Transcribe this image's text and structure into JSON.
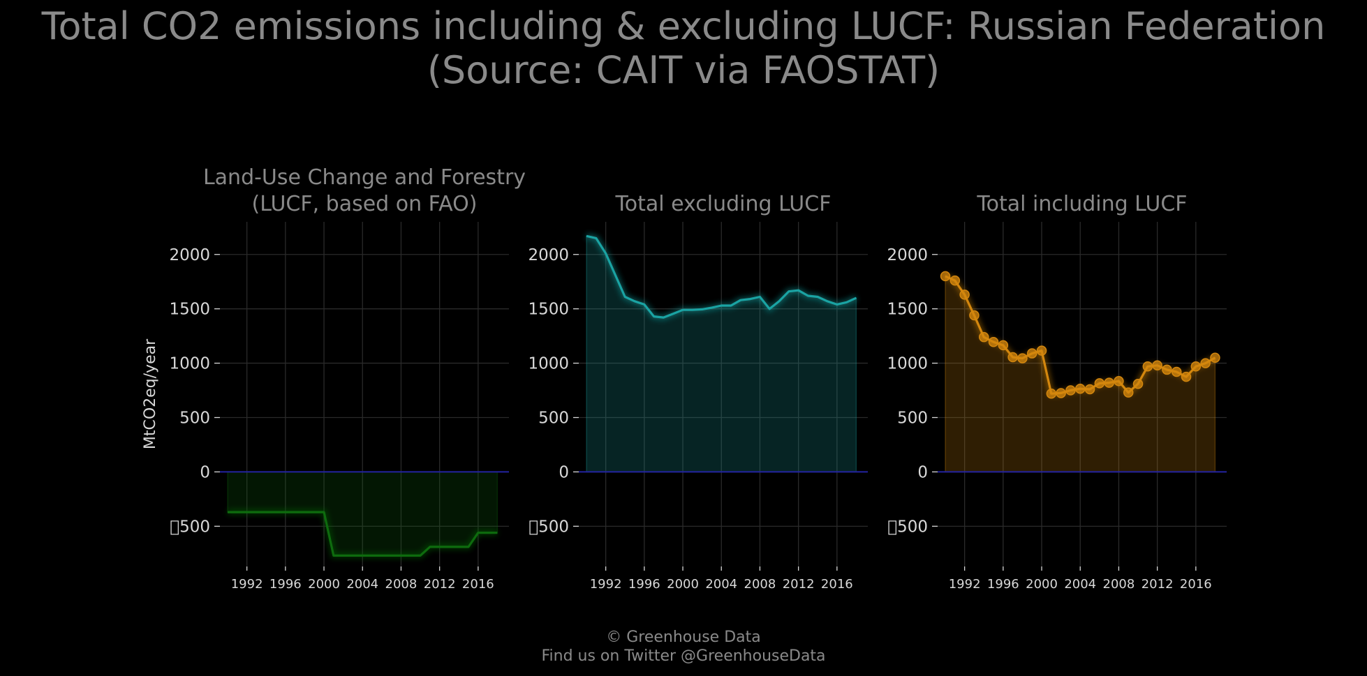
{
  "title_lines": [
    "Total CO2 emissions including & excluding LUCF: Russian Federation",
    "(Source: CAIT via FAOSTAT)"
  ],
  "credits": {
    "line1": "© Greenhouse Data",
    "line2": "Find us on Twitter @GreenhouseData"
  },
  "colors": {
    "background": "#000000",
    "text": "#8a8a8a",
    "tick": "#d8d8d8",
    "grid": "#2a2a2a",
    "zero_line": "#2323a0"
  },
  "chart_data": [
    {
      "type": "area",
      "title_lines": [
        "Land-Use Change and Forestry",
        "(LUCF, based on FAO)"
      ],
      "ylabel": "MtCO2eq/year",
      "xlabel": "",
      "x": [
        1990,
        1991,
        1992,
        1993,
        1994,
        1995,
        1996,
        1997,
        1998,
        1999,
        2000,
        2001,
        2002,
        2003,
        2004,
        2005,
        2006,
        2007,
        2008,
        2009,
        2010,
        2011,
        2012,
        2013,
        2014,
        2015,
        2016,
        2017,
        2018
      ],
      "values": [
        -370,
        -370,
        -370,
        -370,
        -370,
        -370,
        -370,
        -370,
        -370,
        -370,
        -370,
        -770,
        -770,
        -770,
        -770,
        -770,
        -770,
        -770,
        -770,
        -770,
        -770,
        -690,
        -690,
        -690,
        -690,
        -690,
        -560,
        -560,
        -560
      ],
      "color": "#0e6b0e",
      "markers": false,
      "xticks": [
        1992,
        1996,
        2000,
        2004,
        2008,
        2012,
        2016
      ],
      "yticks": [
        -500,
        0,
        500,
        1000,
        1500,
        2000
      ],
      "ytick_labels": [
        "\u0000500",
        "0",
        "500",
        "1000",
        "1500",
        "2000"
      ],
      "xlim": [
        1989.2,
        2019.2
      ],
      "ylim": [
        -870,
        2300
      ],
      "grid": true
    },
    {
      "type": "area",
      "title_lines": [
        "Total excluding LUCF"
      ],
      "x": [
        1990,
        1991,
        1992,
        1993,
        1994,
        1995,
        1996,
        1997,
        1998,
        1999,
        2000,
        2001,
        2002,
        2003,
        2004,
        2005,
        2006,
        2007,
        2008,
        2009,
        2010,
        2011,
        2012,
        2013,
        2014,
        2015,
        2016,
        2017,
        2018
      ],
      "values": [
        2170,
        2150,
        2010,
        1810,
        1610,
        1570,
        1540,
        1430,
        1420,
        1455,
        1490,
        1490,
        1495,
        1510,
        1530,
        1530,
        1580,
        1590,
        1610,
        1500,
        1570,
        1660,
        1670,
        1620,
        1610,
        1570,
        1540,
        1560,
        1600
      ],
      "color": "#1aa3a3",
      "markers": false,
      "xticks": [
        1992,
        1996,
        2000,
        2004,
        2008,
        2012,
        2016
      ],
      "yticks": [
        -500,
        0,
        500,
        1000,
        1500,
        2000
      ],
      "ytick_labels": [
        "\u0000500",
        "0",
        "500",
        "1000",
        "1500",
        "2000"
      ],
      "xlim": [
        1989.2,
        2019.2
      ],
      "ylim": [
        -870,
        2300
      ],
      "grid": true
    },
    {
      "type": "area",
      "title_lines": [
        "Total including LUCF"
      ],
      "x": [
        1990,
        1991,
        1992,
        1993,
        1994,
        1995,
        1996,
        1997,
        1998,
        1999,
        2000,
        2001,
        2002,
        2003,
        2004,
        2005,
        2006,
        2007,
        2008,
        2009,
        2010,
        2011,
        2012,
        2013,
        2014,
        2015,
        2016,
        2017,
        2018
      ],
      "values": [
        1800,
        1760,
        1630,
        1440,
        1240,
        1195,
        1165,
        1055,
        1045,
        1090,
        1115,
        720,
        725,
        750,
        765,
        760,
        815,
        820,
        835,
        730,
        810,
        970,
        980,
        940,
        920,
        875,
        970,
        1000,
        1050
      ],
      "color": "#d4870e",
      "markers": true,
      "xticks": [
        1992,
        1996,
        2000,
        2004,
        2008,
        2012,
        2016
      ],
      "yticks": [
        -500,
        0,
        500,
        1000,
        1500,
        2000
      ],
      "ytick_labels": [
        "\u0000500",
        "0",
        "500",
        "1000",
        "1500",
        "2000"
      ],
      "xlim": [
        1989.2,
        2019.2
      ],
      "ylim": [
        -870,
        2300
      ],
      "grid": true
    }
  ]
}
